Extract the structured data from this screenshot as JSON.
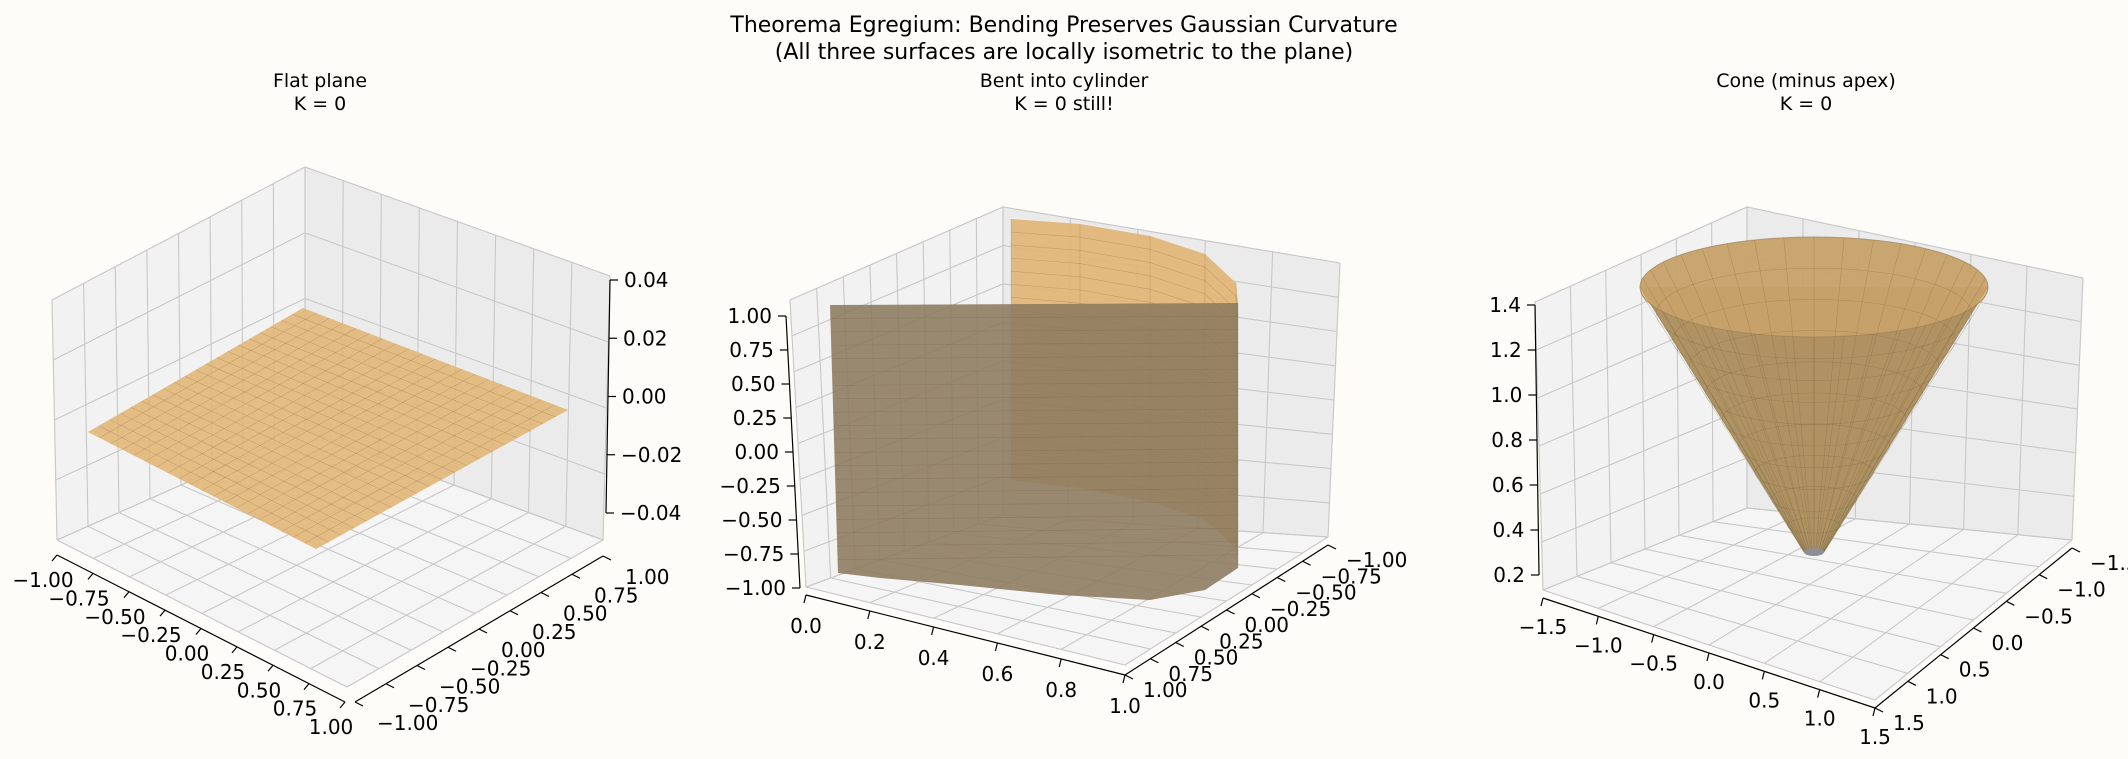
{
  "figure": {
    "suptitle_line1": "Theorema Egregium: Bending Preserves Gaussian Curvature",
    "suptitle_line2": "(All three surfaces are locally isometric to the plane)"
  },
  "colors": {
    "background": "#fdfcf8",
    "surface_face": "#e1b574",
    "surface_dark": "#8c7a5e",
    "cone_edge": "#6f5a35",
    "grid": "#c8c8c8"
  },
  "chart_data": [
    {
      "type": "surface3d",
      "surface": "plane",
      "title_line1": "Flat plane",
      "title_line2": "K = 0",
      "xlim": [
        -1,
        1
      ],
      "ylim": [
        -1,
        1
      ],
      "zlim": [
        -0.05,
        0.05
      ],
      "x_ticks": [
        "−1.00",
        "−0.75",
        "−0.50",
        "−0.25",
        "0.00",
        "0.25",
        "0.50",
        "0.75",
        "1.00"
      ],
      "y_ticks": [
        "−1.00",
        "−0.75",
        "−0.50",
        "−0.25",
        "0.00",
        "0.25",
        "0.50",
        "0.75",
        "1.00"
      ],
      "z_ticks": [
        "−0.04",
        "−0.02",
        "0.00",
        "0.02",
        "0.04"
      ],
      "grid": true
    },
    {
      "type": "surface3d",
      "surface": "half cylinder",
      "title_line1": "Bent into cylinder",
      "title_line2": "K = 0 still!",
      "xlim": [
        0,
        1
      ],
      "ylim": [
        -1,
        1
      ],
      "zlim": [
        -1,
        1
      ],
      "x_ticks": [
        "0.0",
        "0.2",
        "0.4",
        "0.6",
        "0.8",
        "1.0"
      ],
      "y_ticks": [
        "−1.00",
        "−0.75",
        "−0.50",
        "−0.25",
        "0.00",
        "0.25",
        "0.50",
        "0.75",
        "1.00"
      ],
      "z_ticks": [
        "−1.00",
        "−0.75",
        "−0.50",
        "−0.25",
        "0.00",
        "0.25",
        "0.50",
        "0.75",
        "1.00"
      ],
      "grid": true
    },
    {
      "type": "surface3d",
      "surface": "cone",
      "title_line1": "Cone (minus apex)",
      "title_line2": "K = 0",
      "xlim": [
        -1.5,
        1.5
      ],
      "ylim": [
        -1.5,
        1.5
      ],
      "zlim": [
        0.15,
        1.5
      ],
      "x_ticks": [
        "−1.5",
        "−1.0",
        "−0.5",
        "0.0",
        "0.5",
        "1.0",
        "1.5"
      ],
      "y_ticks": [
        "−1.5",
        "−1.0",
        "−0.5",
        "0.0",
        "0.5",
        "1.0",
        "1.5"
      ],
      "z_ticks": [
        "0.2",
        "0.4",
        "0.6",
        "0.8",
        "1.0",
        "1.2",
        "1.4"
      ],
      "grid": true
    }
  ]
}
